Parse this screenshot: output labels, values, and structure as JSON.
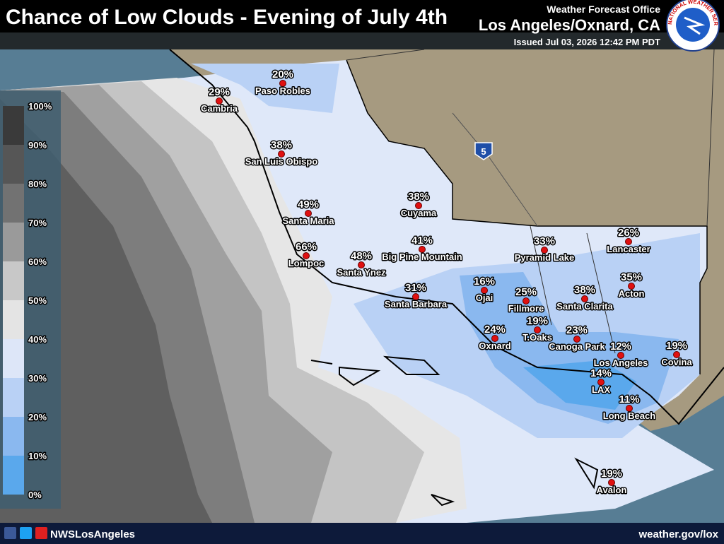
{
  "header": {
    "title": "Chance of Low Clouds - Evening of July 4th",
    "office": "Weather Forecast Office",
    "location": "Los Angeles/Oxnard, CA",
    "issued": "Issued Jul 03, 2026 12:42 PM PDT",
    "logo_text": "NATIONAL WEATHER SERVICE"
  },
  "legend": {
    "labels": [
      "100%",
      "90%",
      "80%",
      "70%",
      "60%",
      "50%",
      "40%",
      "30%",
      "20%",
      "10%",
      "0%"
    ]
  },
  "map": {
    "interstate": "5",
    "stations": [
      {
        "name": "Cambria",
        "chance": "29%"
      },
      {
        "name": "Paso Robles",
        "chance": "20%"
      },
      {
        "name": "San Luis Obispo",
        "chance": "38%"
      },
      {
        "name": "Santa Maria",
        "chance": "49%"
      },
      {
        "name": "Cuyama",
        "chance": "38%"
      },
      {
        "name": "Lompoc",
        "chance": "66%"
      },
      {
        "name": "Santa Ynez",
        "chance": "48%"
      },
      {
        "name": "Big Pine Mountain",
        "chance": "41%"
      },
      {
        "name": "Santa Barbara",
        "chance": "31%"
      },
      {
        "name": "Ojai",
        "chance": "16%"
      },
      {
        "name": "Fillmore",
        "chance": "25%"
      },
      {
        "name": "Pyramid Lake",
        "chance": "33%"
      },
      {
        "name": "Lancaster",
        "chance": "26%"
      },
      {
        "name": "Acton",
        "chance": "35%"
      },
      {
        "name": "Santa Clarita",
        "chance": "38%"
      },
      {
        "name": "Oxnard",
        "chance": "24%"
      },
      {
        "name": "T.Oaks",
        "chance": "19%"
      },
      {
        "name": "Canoga Park",
        "chance": "23%"
      },
      {
        "name": "Los Angeles",
        "chance": "12%"
      },
      {
        "name": "Covina",
        "chance": "19%"
      },
      {
        "name": "LAX",
        "chance": "14%"
      },
      {
        "name": "Long Beach",
        "chance": "11%"
      },
      {
        "name": "Avalon",
        "chance": "19%"
      }
    ]
  },
  "footer": {
    "handle": "NWSLosAngeles",
    "url": "weather.gov/lox"
  }
}
